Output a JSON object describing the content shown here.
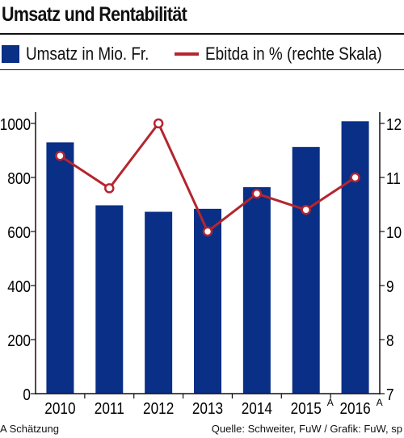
{
  "title": "Umsatz und Rentabilität",
  "legend": {
    "bars_label": "Umsatz in Mio. Fr.",
    "line_label": "Ebitda in % (rechte Skala)"
  },
  "footer": {
    "note": "A Schätzung",
    "source": "Quelle: Schweiter, FuW / Grafik: FuW, sp"
  },
  "colors": {
    "bar": "#0a2f86",
    "line": "#b5252f",
    "text": "#111111"
  },
  "chart_data": {
    "type": "bar",
    "categories": [
      "2010",
      "2011",
      "2012",
      "2013",
      "2014",
      "2015",
      "2016"
    ],
    "category_superscripts": [
      "",
      "",
      "",
      "",
      "",
      "A",
      "A"
    ],
    "series": [
      {
        "name": "Umsatz in Mio. Fr.",
        "type": "bar",
        "axis": "left",
        "values": [
          930,
          697,
          673,
          684,
          764,
          913,
          1008
        ]
      },
      {
        "name": "Ebitda in % (rechte Skala)",
        "type": "line",
        "axis": "right",
        "values": [
          11.4,
          10.8,
          12.0,
          10.0,
          10.7,
          10.4,
          11.0
        ]
      }
    ],
    "y_left": {
      "min": 0,
      "max": 1000,
      "ticks": [
        0,
        200,
        400,
        600,
        800,
        1000
      ]
    },
    "y_right": {
      "min": 7,
      "max": 12,
      "ticks": [
        7,
        8,
        9,
        10,
        11,
        12
      ]
    },
    "grid": false,
    "legend_position": "top"
  }
}
